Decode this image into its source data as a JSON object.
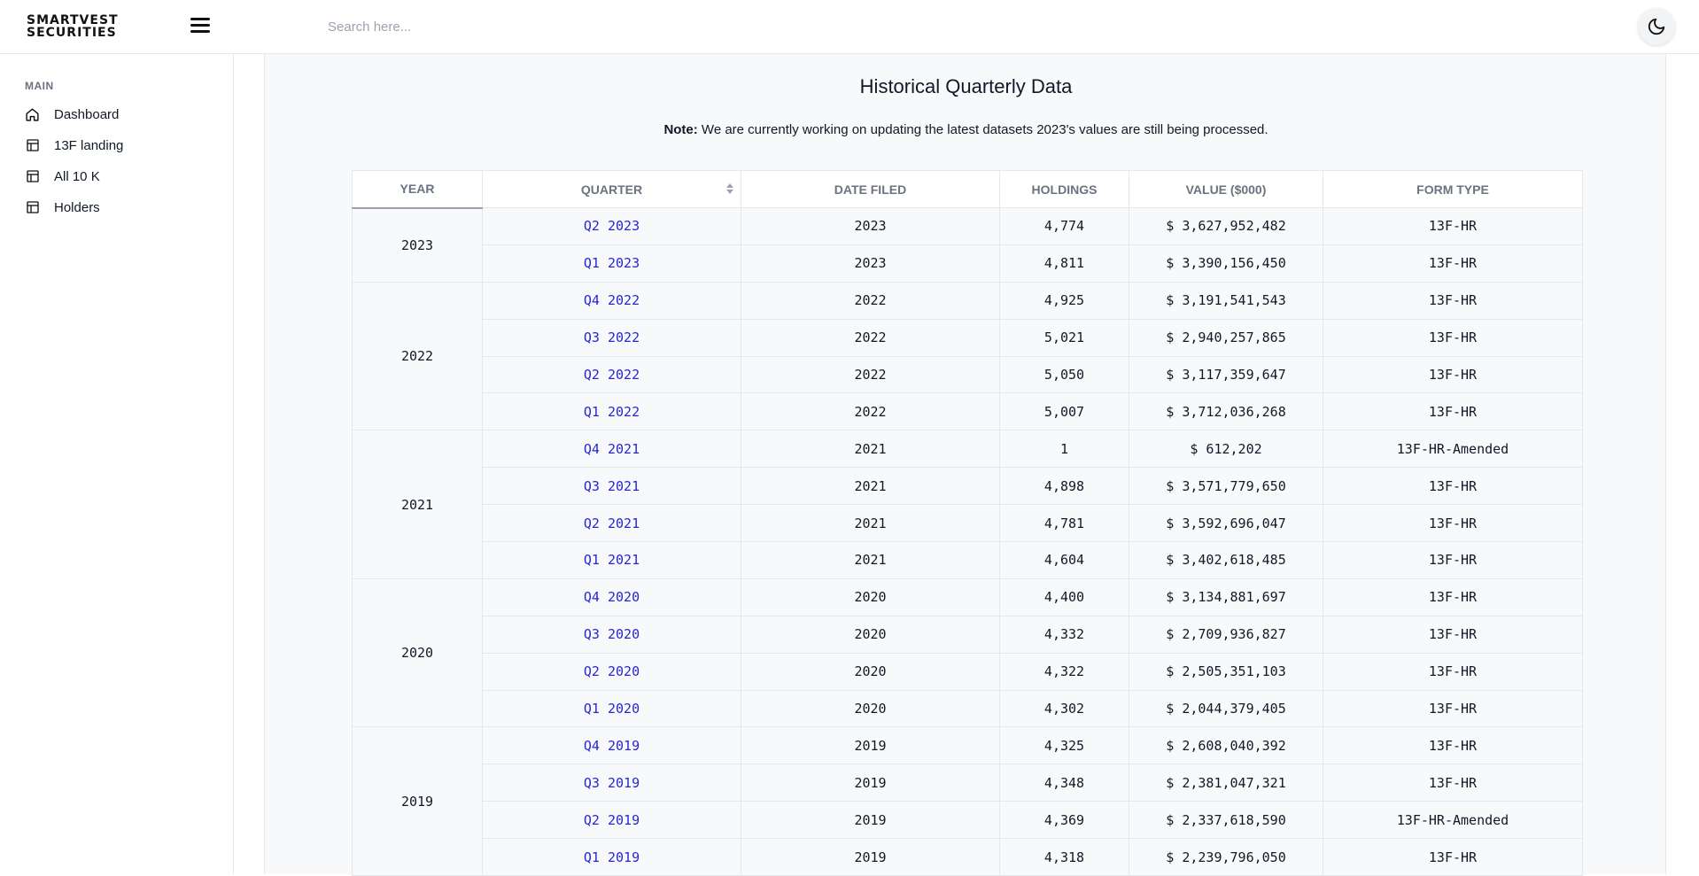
{
  "header": {
    "logo_line1": "SMARTVEST",
    "logo_line2": "SECURITIES",
    "search_placeholder": "Search here..."
  },
  "sidebar": {
    "heading": "MAIN",
    "items": [
      {
        "label": "Dashboard",
        "icon": "home-icon"
      },
      {
        "label": "13F landing",
        "icon": "table-icon"
      },
      {
        "label": "All 10 K",
        "icon": "table-icon"
      },
      {
        "label": "Holders",
        "icon": "table-icon"
      }
    ]
  },
  "main": {
    "title": "Historical Quarterly Data",
    "note_label": "Note:",
    "note_text": " We are currently working on updating the latest datasets 2023's values are still being processed."
  },
  "table": {
    "columns": [
      "YEAR",
      "QUARTER",
      "DATE FILED",
      "HOLDINGS",
      "VALUE ($000)",
      "FORM TYPE"
    ],
    "groups": [
      {
        "year": "2023",
        "rows": [
          {
            "quarter": "Q2 2023",
            "date_filed": "2023",
            "holdings": "4,774",
            "value": "$ 3,627,952,482",
            "form_type": "13F-HR"
          },
          {
            "quarter": "Q1 2023",
            "date_filed": "2023",
            "holdings": "4,811",
            "value": "$ 3,390,156,450",
            "form_type": "13F-HR"
          }
        ]
      },
      {
        "year": "2022",
        "rows": [
          {
            "quarter": "Q4 2022",
            "date_filed": "2022",
            "holdings": "4,925",
            "value": "$ 3,191,541,543",
            "form_type": "13F-HR"
          },
          {
            "quarter": "Q3 2022",
            "date_filed": "2022",
            "holdings": "5,021",
            "value": "$ 2,940,257,865",
            "form_type": "13F-HR"
          },
          {
            "quarter": "Q2 2022",
            "date_filed": "2022",
            "holdings": "5,050",
            "value": "$ 3,117,359,647",
            "form_type": "13F-HR"
          },
          {
            "quarter": "Q1 2022",
            "date_filed": "2022",
            "holdings": "5,007",
            "value": "$ 3,712,036,268",
            "form_type": "13F-HR"
          }
        ]
      },
      {
        "year": "2021",
        "rows": [
          {
            "quarter": "Q4 2021",
            "date_filed": "2021",
            "holdings": "1",
            "value": "$ 612,202",
            "form_type": "13F-HR-Amended"
          },
          {
            "quarter": "Q3 2021",
            "date_filed": "2021",
            "holdings": "4,898",
            "value": "$ 3,571,779,650",
            "form_type": "13F-HR"
          },
          {
            "quarter": "Q2 2021",
            "date_filed": "2021",
            "holdings": "4,781",
            "value": "$ 3,592,696,047",
            "form_type": "13F-HR"
          },
          {
            "quarter": "Q1 2021",
            "date_filed": "2021",
            "holdings": "4,604",
            "value": "$ 3,402,618,485",
            "form_type": "13F-HR"
          }
        ]
      },
      {
        "year": "2020",
        "rows": [
          {
            "quarter": "Q4 2020",
            "date_filed": "2020",
            "holdings": "4,400",
            "value": "$ 3,134,881,697",
            "form_type": "13F-HR"
          },
          {
            "quarter": "Q3 2020",
            "date_filed": "2020",
            "holdings": "4,332",
            "value": "$ 2,709,936,827",
            "form_type": "13F-HR"
          },
          {
            "quarter": "Q2 2020",
            "date_filed": "2020",
            "holdings": "4,322",
            "value": "$ 2,505,351,103",
            "form_type": "13F-HR"
          },
          {
            "quarter": "Q1 2020",
            "date_filed": "2020",
            "holdings": "4,302",
            "value": "$ 2,044,379,405",
            "form_type": "13F-HR"
          }
        ]
      },
      {
        "year": "2019",
        "rows": [
          {
            "quarter": "Q4 2019",
            "date_filed": "2019",
            "holdings": "4,325",
            "value": "$ 2,608,040,392",
            "form_type": "13F-HR"
          },
          {
            "quarter": "Q3 2019",
            "date_filed": "2019",
            "holdings": "4,348",
            "value": "$ 2,381,047,321",
            "form_type": "13F-HR"
          },
          {
            "quarter": "Q2 2019",
            "date_filed": "2019",
            "holdings": "4,369",
            "value": "$ 2,337,618,590",
            "form_type": "13F-HR-Amended"
          },
          {
            "quarter": "Q1 2019",
            "date_filed": "2019",
            "holdings": "4,318",
            "value": "$ 2,239,796,050",
            "form_type": "13F-HR"
          }
        ]
      }
    ]
  },
  "colors": {
    "link": "#2626d6",
    "header_text": "#6b7280"
  }
}
